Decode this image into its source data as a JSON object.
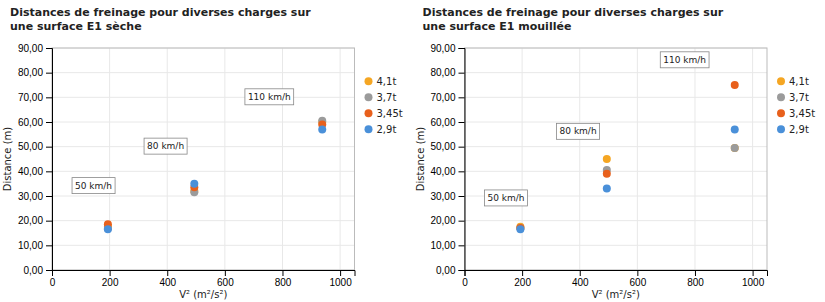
{
  "chart_data": [
    {
      "type": "scatter",
      "title": "Distances de freinage pour diverses charges sur\nune surface E1 sèche",
      "xlabel": "V² (m²/s²)",
      "ylabel": "Distance (m)",
      "xlim": [
        0,
        1050
      ],
      "ylim": [
        0,
        90
      ],
      "xticks": [
        0,
        200,
        400,
        600,
        800,
        1000
      ],
      "yticks": [
        {
          "value": 0,
          "label": "0,00"
        },
        {
          "value": 10,
          "label": "10,00"
        },
        {
          "value": 20,
          "label": "20,00"
        },
        {
          "value": 30,
          "label": "30,00"
        },
        {
          "value": 40,
          "label": "40,00"
        },
        {
          "value": 50,
          "label": "50,00"
        },
        {
          "value": 60,
          "label": "60,00"
        },
        {
          "value": 70,
          "label": "70,00"
        },
        {
          "value": 80,
          "label": "80,00"
        },
        {
          "value": 90,
          "label": "90,00"
        }
      ],
      "grid": true,
      "legend": "right",
      "x": [
        194,
        494,
        938
      ],
      "series": [
        {
          "name": "4,1t",
          "color": "#f5a623",
          "values": [
            17.5,
            32.0,
            60.0
          ]
        },
        {
          "name": "3,7t",
          "color": "#9b9b9b",
          "values": [
            16.8,
            31.5,
            60.5
          ]
        },
        {
          "name": "3,45t",
          "color": "#e8601c",
          "values": [
            18.5,
            33.5,
            59.0
          ]
        },
        {
          "name": "2,9t",
          "color": "#4a90d9",
          "values": [
            16.5,
            35.0,
            57.0
          ]
        }
      ],
      "annotations": [
        {
          "text": "50 km/h",
          "x": 80,
          "y": 33
        },
        {
          "text": "80 km/h",
          "x": 330,
          "y": 49
        },
        {
          "text": "110 km/h",
          "x": 680,
          "y": 69
        }
      ]
    },
    {
      "type": "scatter",
      "title": "Distances de freinage pour diverses charges sur\nune surface E1 mouillée",
      "xlabel": "V² (m²/s²)",
      "ylabel": "Distance (m)",
      "xlim": [
        0,
        1050
      ],
      "ylim": [
        0,
        90
      ],
      "xticks": [
        0,
        200,
        400,
        600,
        800,
        1000
      ],
      "yticks": [
        {
          "value": 0,
          "label": "0,00"
        },
        {
          "value": 10,
          "label": "10,00"
        },
        {
          "value": 20,
          "label": "20,00"
        },
        {
          "value": 30,
          "label": "30,00"
        },
        {
          "value": 40,
          "label": "40,00"
        },
        {
          "value": 50,
          "label": "50,00"
        },
        {
          "value": 60,
          "label": "60,00"
        },
        {
          "value": 70,
          "label": "70,00"
        },
        {
          "value": 80,
          "label": "80,00"
        },
        {
          "value": 90,
          "label": "90,00"
        }
      ],
      "grid": true,
      "legend": "right",
      "x": [
        194,
        494,
        938
      ],
      "series": [
        {
          "name": "4,1t",
          "color": "#f5a623",
          "values": [
            17.5,
            45.0,
            49.5
          ]
        },
        {
          "name": "3,7t",
          "color": "#9b9b9b",
          "values": [
            17.0,
            40.5,
            49.5
          ]
        },
        {
          "name": "3,45t",
          "color": "#e8601c",
          "values": [
            17.0,
            39.0,
            75.0
          ]
        },
        {
          "name": "2,9t",
          "color": "#4a90d9",
          "values": [
            16.5,
            33.0,
            57.0
          ]
        }
      ],
      "annotations": [
        {
          "text": "50 km/h",
          "x": 80,
          "y": 28
        },
        {
          "text": "80 km/h",
          "x": 330,
          "y": 55
        },
        {
          "text": "110 km/h",
          "x": 690,
          "y": 84
        }
      ]
    }
  ]
}
